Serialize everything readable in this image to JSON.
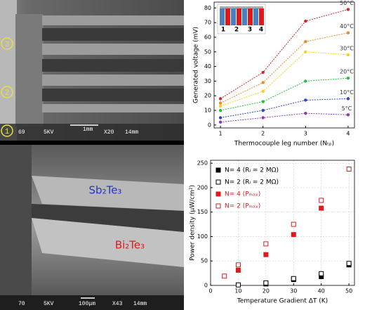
{
  "images": [
    {
      "markers": [
        "1",
        "2",
        "3"
      ],
      "caption": [
        "69",
        "5KV",
        "1mm",
        "X20",
        "14mm"
      ]
    },
    {
      "labels": [
        "Sb₂Te₃",
        "Bi₂Te₃"
      ],
      "caption": [
        "70",
        "5KV",
        "100μm",
        "X43",
        "14mm"
      ]
    }
  ],
  "chart_data": [
    {
      "type": "line",
      "ylabel": "Generated voltage (mV)",
      "xlabel": "Thermocouple leg number (Nₜₚ)",
      "inset_labels": [
        "1",
        "2",
        "3",
        "4"
      ],
      "x": [
        1,
        2,
        3,
        4
      ],
      "xlim": [
        0.85,
        4.15
      ],
      "xticks": [
        1,
        2,
        3,
        4
      ],
      "ylim": [
        -2,
        84
      ],
      "yticks": [
        0,
        10,
        20,
        30,
        40,
        50,
        60,
        70,
        80
      ],
      "series": [
        {
          "name": "5°C",
          "color": "#8a3ab9",
          "values": [
            2,
            5,
            8,
            7
          ]
        },
        {
          "name": "10°C",
          "color": "#2f45c8",
          "values": [
            5,
            10,
            17,
            18
          ]
        },
        {
          "name": "20°C",
          "color": "#22c23a",
          "values": [
            10,
            16,
            30,
            32
          ]
        },
        {
          "name": "30°C",
          "color": "#f2d21b",
          "values": [
            13,
            23,
            50,
            48
          ]
        },
        {
          "name": "40°C",
          "color": "#ef8a2a",
          "values": [
            15,
            29,
            57,
            63
          ]
        },
        {
          "name": "50°C",
          "color": "#c8282a",
          "values": [
            18,
            36,
            71,
            79
          ]
        }
      ]
    },
    {
      "type": "scatter",
      "ylabel": "Power density (μW/cm²)",
      "xlabel": "Temperature Gradient ΔT (K)",
      "xlim": [
        0,
        52
      ],
      "xticks": [
        0,
        10,
        20,
        30,
        40,
        50
      ],
      "ylim": [
        0,
        256
      ],
      "yticks": [
        0,
        50,
        100,
        150,
        200,
        250
      ],
      "grid": true,
      "legend": "upper left",
      "series": [
        {
          "name": "N= 4 (Rₗ = 2 MΩ)",
          "color": "#000000",
          "filled": true,
          "x": [
            20,
            30,
            40,
            50
          ],
          "values": [
            3,
            12,
            18,
            42
          ]
        },
        {
          "name": "N= 2 (Rₗ = 2 MΩ)",
          "color": "#000000",
          "filled": false,
          "x": [
            10,
            20,
            30,
            40,
            50
          ],
          "values": [
            1,
            5,
            14,
            24,
            45
          ]
        },
        {
          "name": "N= 4 (Pₘₐₓ)",
          "color": "#e0191e",
          "filled": true,
          "x": [
            10,
            20,
            30,
            40
          ],
          "values": [
            31,
            63,
            104,
            158
          ]
        },
        {
          "name": "N= 2 (Pₘₐₓ)",
          "color": "#e0191e",
          "filled": false,
          "x": [
            5,
            10,
            20,
            30,
            40,
            50
          ],
          "values": [
            19,
            42,
            85,
            125,
            174,
            238
          ]
        }
      ]
    }
  ]
}
